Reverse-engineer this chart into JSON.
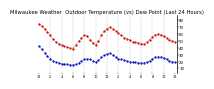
{
  "title": "Milwaukee Weather  Outdoor Temperature (vs) Dew Point (Last 24 Hours)",
  "title_fontsize": 3.8,
  "background_color": "#ffffff",
  "temp_color": "#cc0000",
  "dew_color": "#0000bb",
  "grid_color": "#999999",
  "yticks": [
    10,
    20,
    30,
    40,
    50,
    60,
    70,
    80
  ],
  "ylim": [
    3,
    88
  ],
  "n_points": 49,
  "temp_values": [
    75,
    72,
    68,
    63,
    58,
    53,
    49,
    46,
    44,
    42,
    41,
    40,
    39,
    44,
    50,
    55,
    58,
    57,
    52,
    47,
    44,
    50,
    58,
    64,
    68,
    70,
    68,
    65,
    61,
    58,
    55,
    53,
    51,
    49,
    48,
    47,
    46,
    45,
    48,
    52,
    56,
    59,
    60,
    59,
    57,
    54,
    52,
    50,
    48
  ],
  "dew_values": [
    42,
    38,
    33,
    28,
    24,
    21,
    19,
    18,
    17,
    16,
    16,
    15,
    15,
    16,
    18,
    21,
    23,
    24,
    23,
    21,
    19,
    22,
    26,
    29,
    31,
    32,
    30,
    27,
    24,
    23,
    22,
    21,
    20,
    19,
    19,
    18,
    18,
    18,
    19,
    21,
    24,
    26,
    27,
    27,
    25,
    23,
    21,
    20,
    19
  ],
  "x_tick_positions": [
    0,
    4,
    8,
    12,
    16,
    20,
    24,
    28,
    32,
    36,
    40,
    44,
    48
  ],
  "x_tick_labels": [
    "12",
    "2",
    "4",
    "6",
    "8",
    "10",
    "12",
    "2",
    "4",
    "6",
    "8",
    "10",
    "12"
  ],
  "vgrid_positions": [
    4,
    8,
    12,
    16,
    20,
    24,
    28,
    32,
    36,
    40,
    44
  ],
  "marker_size": 1.2,
  "line_width": 0.5,
  "tick_fontsize": 2.5,
  "ytick_fontsize": 2.8
}
